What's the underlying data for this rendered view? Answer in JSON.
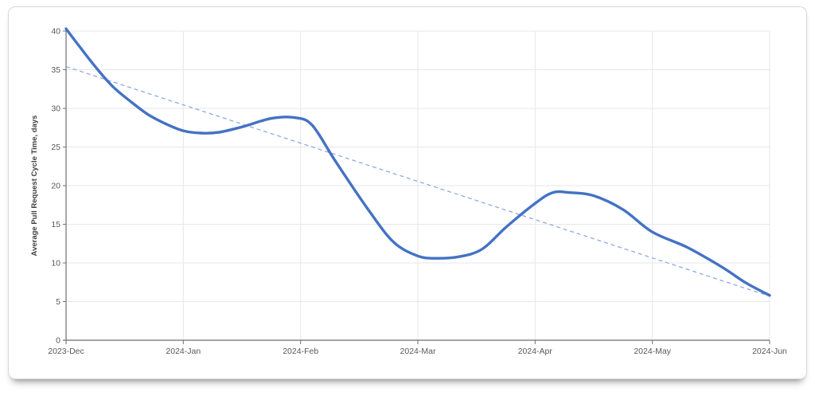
{
  "colors": {
    "page_background": "#ffffff",
    "card_background": "#ffffff",
    "card_border": "#d8d8d8"
  },
  "chart_data": {
    "type": "line",
    "title": "",
    "xlabel": "",
    "ylabel": "Average Pull Request Cycle Time, days",
    "categories": [
      "2023-Dec",
      "2024-Jan",
      "2024-Feb",
      "2024-Mar",
      "2024-Apr",
      "2024-May",
      "2024-Jun"
    ],
    "ylim": [
      0,
      40
    ],
    "yticks": [
      0,
      5,
      10,
      15,
      20,
      25,
      30,
      35,
      40
    ],
    "grid": true,
    "legend_position": "none",
    "grid_color": "#e7e7e7",
    "axis_color": "#6f6f6f",
    "tick_label_color": "#595959",
    "ylabel_color": "#3f3f3f",
    "series": [
      {
        "name": "Average Pull Request Cycle Time",
        "type": "smooth-line",
        "color": "#4472c4",
        "stroke_width": 3.4,
        "monthly_values": [
          40.3,
          27.1,
          28.6,
          10.9,
          17.7,
          14.0,
          5.8
        ],
        "curve_samples": [
          [
            0,
            40.3
          ],
          [
            0.13,
            37.7
          ],
          [
            0.26,
            35.2
          ],
          [
            0.4,
            32.8
          ],
          [
            0.55,
            30.9
          ],
          [
            0.7,
            29.2
          ],
          [
            0.85,
            28.0
          ],
          [
            1.0,
            27.1
          ],
          [
            1.15,
            26.8
          ],
          [
            1.3,
            26.9
          ],
          [
            1.5,
            27.6
          ],
          [
            1.75,
            28.7
          ],
          [
            1.95,
            28.8
          ],
          [
            2.1,
            27.8
          ],
          [
            2.3,
            23.1
          ],
          [
            2.6,
            16.4
          ],
          [
            2.8,
            12.6
          ],
          [
            3.0,
            10.9
          ],
          [
            3.15,
            10.6
          ],
          [
            3.35,
            10.8
          ],
          [
            3.55,
            11.8
          ],
          [
            3.75,
            14.6
          ],
          [
            4.0,
            17.7
          ],
          [
            4.15,
            19.1
          ],
          [
            4.3,
            19.1
          ],
          [
            4.5,
            18.7
          ],
          [
            4.75,
            16.9
          ],
          [
            5.0,
            14.0
          ],
          [
            5.3,
            12.0
          ],
          [
            5.6,
            9.4
          ],
          [
            5.8,
            7.4
          ],
          [
            6.0,
            5.8
          ]
        ]
      },
      {
        "name": "Linear trend",
        "type": "dashed-line",
        "color": "#8faadc",
        "stroke_width": 1.3,
        "dash": "5 4",
        "points": [
          [
            0,
            35.4
          ],
          [
            6,
            5.7
          ]
        ]
      }
    ]
  }
}
